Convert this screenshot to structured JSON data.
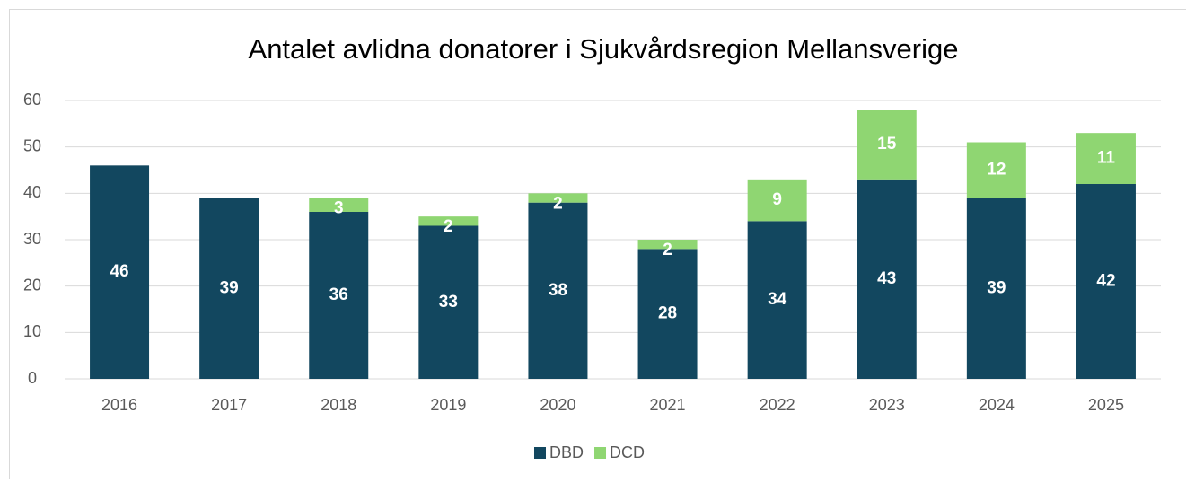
{
  "chart_data": {
    "type": "stacked_bar",
    "title": "Antalet avlidna donatorer i Sjukvårdsregion Mellansverige",
    "categories": [
      "2016",
      "2017",
      "2018",
      "2019",
      "2020",
      "2021",
      "2022",
      "2023",
      "2024",
      "2025"
    ],
    "series": [
      {
        "name": "DBD",
        "color": "#12475f",
        "values": [
          46,
          39,
          36,
          33,
          38,
          28,
          34,
          43,
          39,
          42
        ]
      },
      {
        "name": "DCD",
        "color": "#8fd672",
        "values": [
          null,
          null,
          3,
          2,
          2,
          2,
          9,
          15,
          12,
          11
        ]
      }
    ],
    "ylim": [
      0,
      60
    ],
    "yticks": [
      0,
      10,
      20,
      30,
      40,
      50,
      60
    ],
    "grid": true,
    "legend": "bottom"
  }
}
